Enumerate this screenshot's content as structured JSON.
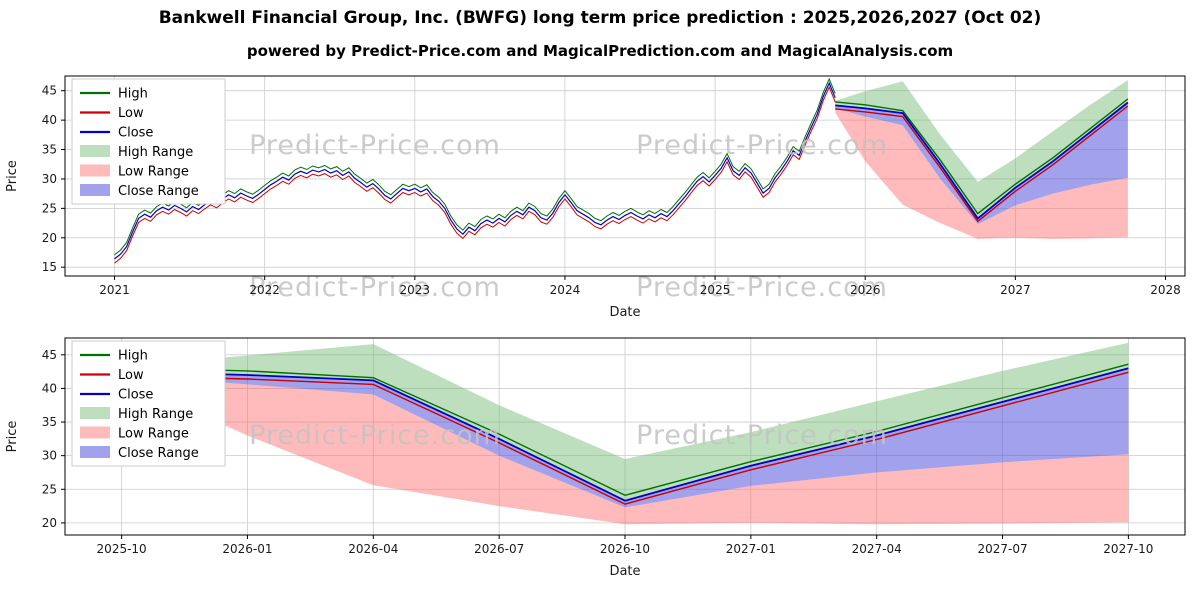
{
  "header": {
    "title": "Bankwell Financial Group, Inc. (BWFG) long term price prediction : 2025,2026,2027 (Oct 02)",
    "subtitle": "powered by Predict-Price.com and MagicalPrediction.com and MagicalAnalysis.com"
  },
  "watermark": {
    "text": "Predict-Price.com",
    "color": "#c3c3c3"
  },
  "colors": {
    "high_line": "#007000",
    "low_line": "#cc0000",
    "close_line": "#0000cc",
    "high_range_fill": "rgba(110,185,110,0.45)",
    "low_range_fill": "rgba(255,105,105,0.45)",
    "close_range_fill": "rgba(85,85,220,0.55)",
    "grid": "#cccccc",
    "axis": "#000000",
    "tick_text": "#1a1a1a"
  },
  "legend": {
    "items": [
      {
        "label": "High",
        "type": "line",
        "color_key": "high_line"
      },
      {
        "label": "Low",
        "type": "line",
        "color_key": "low_line"
      },
      {
        "label": "Close",
        "type": "line",
        "color_key": "close_line"
      },
      {
        "label": "High Range",
        "type": "patch",
        "color_key": "high_range_fill"
      },
      {
        "label": "Low Range",
        "type": "patch",
        "color_key": "low_range_fill"
      },
      {
        "label": "Close Range",
        "type": "patch",
        "color_key": "close_range_fill"
      }
    ]
  },
  "forecast": {
    "labels": [
      "2025-10",
      "2026-01",
      "2026-04",
      "2026-07",
      "2026-10",
      "2027-01",
      "2027-04",
      "2027-07",
      "2027-10"
    ],
    "years": [
      2025.8,
      2026.0,
      2026.25,
      2026.5,
      2026.75,
      2027.0,
      2027.25,
      2027.5,
      2027.75
    ],
    "high": [
      43.1,
      42.6,
      41.6,
      33.2,
      24.1,
      29.1,
      33.6,
      38.6,
      43.6
    ],
    "low": [
      41.9,
      41.4,
      40.6,
      31.9,
      22.8,
      27.9,
      32.4,
      37.4,
      42.4
    ],
    "close": [
      42.5,
      42.0,
      41.2,
      32.5,
      23.3,
      28.5,
      33.0,
      38.0,
      43.0
    ],
    "high_range_top": [
      43.3,
      44.9,
      46.6,
      37.5,
      29.5,
      33.5,
      38.1,
      42.6,
      46.8
    ],
    "close_range_bottom": [
      42.0,
      40.6,
      39.1,
      30.0,
      22.3,
      25.5,
      27.5,
      29.0,
      30.2
    ],
    "low_range_bottom": [
      41.3,
      33.0,
      25.6,
      22.5,
      19.8,
      20.0,
      19.8,
      19.9,
      20.1
    ]
  },
  "chart_data": [
    {
      "type": "line",
      "name": "historical-price-with-forecast",
      "xlabel": "Date",
      "ylabel": "Price",
      "x_ticks": [
        2021,
        2022,
        2023,
        2024,
        2025,
        2026,
        2027,
        2028
      ],
      "y_ticks": [
        15,
        20,
        25,
        30,
        35,
        40,
        45
      ],
      "x_range": [
        2020.67,
        2028.13
      ],
      "y_range": [
        13.5,
        47.5
      ],
      "historical": {
        "x_start": 2021.0,
        "x_step": 0.04,
        "high_offset": 0.7,
        "low_offset": 0.7,
        "close": [
          16.4,
          17.2,
          18.5,
          21.0,
          23.3,
          24.0,
          23.5,
          24.6,
          25.2,
          24.7,
          25.5,
          25.0,
          24.4,
          25.3,
          24.8,
          25.6,
          26.3,
          25.8,
          26.6,
          27.3,
          26.8,
          27.6,
          27.1,
          26.7,
          27.4,
          28.2,
          29.0,
          29.6,
          30.3,
          29.8,
          30.8,
          31.3,
          30.9,
          31.5,
          31.2,
          31.6,
          31.0,
          31.4,
          30.6,
          31.2,
          30.1,
          29.4,
          28.6,
          29.2,
          28.3,
          27.2,
          26.6,
          27.5,
          28.4,
          28.0,
          28.4,
          27.8,
          28.3,
          27.0,
          26.2,
          25.0,
          23.0,
          21.5,
          20.6,
          21.8,
          21.2,
          22.4,
          23.0,
          22.5,
          23.3,
          22.7,
          23.8,
          24.5,
          23.9,
          25.2,
          24.6,
          23.4,
          23.0,
          24.2,
          26.0,
          27.3,
          26.0,
          24.6,
          24.0,
          23.4,
          22.6,
          22.2,
          23.0,
          23.6,
          23.1,
          23.8,
          24.3,
          23.7,
          23.2,
          23.9,
          23.4,
          24.1,
          23.6,
          24.6,
          25.8,
          27.0,
          28.3,
          29.6,
          30.4,
          29.5,
          30.6,
          31.8,
          33.6,
          31.4,
          30.6,
          31.9,
          31.0,
          29.3,
          27.6,
          28.4,
          30.2,
          31.5,
          33.0,
          34.8,
          34.0,
          36.5,
          38.8,
          41.0,
          44.0,
          46.3,
          43.8
        ]
      },
      "series_note": "forecast bands/lines use top-level forecast object plotted vs forecast.years"
    },
    {
      "type": "area",
      "name": "forecast-detail",
      "xlabel": "Date",
      "ylabel": "Price",
      "x_tick_labels": [
        "2025-10",
        "2026-01",
        "2026-04",
        "2026-07",
        "2026-10",
        "2027-01",
        "2027-04",
        "2027-07",
        "2027-10"
      ],
      "y_ticks": [
        20,
        25,
        30,
        35,
        40,
        45
      ],
      "x_range": [
        -0.45,
        8.45
      ],
      "y_range": [
        18.2,
        47.5
      ],
      "series_note": "plots top-level forecast object vs category index 0-8"
    }
  ]
}
